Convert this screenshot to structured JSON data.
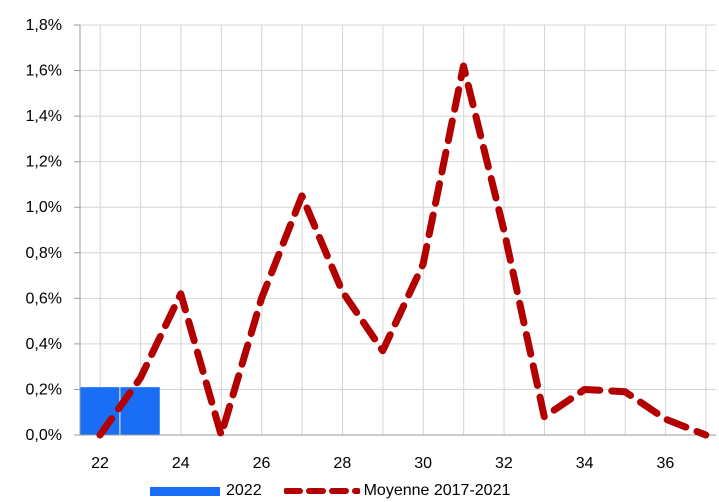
{
  "colors": {
    "bar": "#1a6ef5",
    "line": "#b30000",
    "grid": "#d4d4d4",
    "axis": "#9a9a9a"
  },
  "chart_data": {
    "type": "bar",
    "title": "",
    "xlabel": "",
    "ylabel": "",
    "xlim": [
      22,
      37
    ],
    "ylim": [
      0,
      1.8
    ],
    "grid": true,
    "legend_position": "bottom",
    "x_ticks": [
      "22",
      "24",
      "26",
      "28",
      "30",
      "32",
      "34",
      "36"
    ],
    "y_ticks": [
      "0,0%",
      "0,2%",
      "0,4%",
      "0,6%",
      "0,8%",
      "1,0%",
      "1,2%",
      "1,4%",
      "1,6%",
      "1,8%"
    ],
    "series": [
      {
        "name": "2022",
        "type": "bar",
        "x": [
          22,
          23
        ],
        "values": [
          0.21,
          0.21
        ]
      },
      {
        "name": "Moyenne 2017-2021",
        "type": "line",
        "style": "dashed",
        "x": [
          22,
          23,
          24,
          25,
          26,
          27,
          28,
          29,
          30,
          31,
          32,
          33,
          34,
          35,
          36,
          37
        ],
        "values": [
          0.0,
          0.25,
          0.62,
          0.0,
          0.6,
          1.05,
          0.63,
          0.37,
          0.75,
          1.62,
          0.9,
          0.08,
          0.2,
          0.19,
          0.07,
          0.0
        ]
      }
    ]
  }
}
